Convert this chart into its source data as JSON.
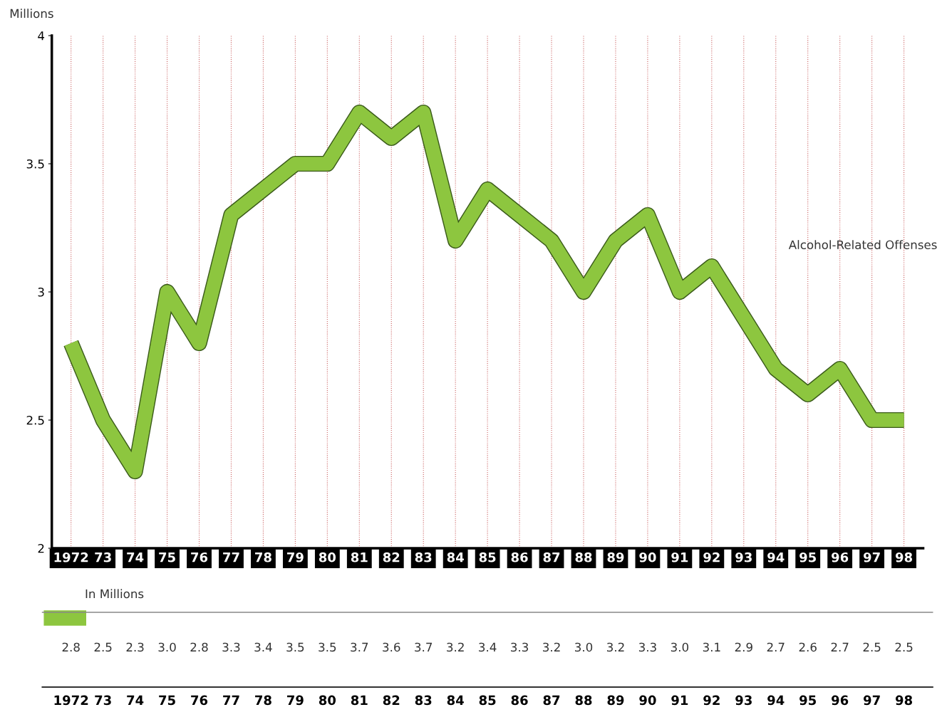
{
  "chart_data": {
    "type": "line",
    "ylabel": "Millions",
    "categories": [
      "1972",
      "73",
      "74",
      "75",
      "76",
      "77",
      "78",
      "79",
      "80",
      "81",
      "82",
      "83",
      "84",
      "85",
      "86",
      "87",
      "88",
      "89",
      "90",
      "91",
      "92",
      "93",
      "94",
      "95",
      "96",
      "97",
      "98"
    ],
    "series": [
      {
        "name": "Alcohol-Related Offenses",
        "color": "#8dc63f",
        "values": [
          2.8,
          2.5,
          2.3,
          3.0,
          2.8,
          3.3,
          3.4,
          3.5,
          3.5,
          3.7,
          3.6,
          3.7,
          3.2,
          3.4,
          3.3,
          3.2,
          3.0,
          3.2,
          3.3,
          3.0,
          3.1,
          2.9,
          2.7,
          2.6,
          2.7,
          2.5,
          2.5
        ],
        "value_labels": [
          "2.8",
          "2.5",
          "2.3",
          "3.0",
          "2.8",
          "3.3",
          "3.4",
          "3.5",
          "3.5",
          "3.7",
          "3.6",
          "3.7",
          "3.2",
          "3.4",
          "3.3",
          "3.2",
          "3.0",
          "3.2",
          "3.3",
          "3.0",
          "3.1",
          "2.9",
          "2.7",
          "2.6",
          "2.7",
          "2.5",
          "2.5"
        ]
      }
    ],
    "ylim": [
      2,
      4
    ],
    "yticks": [
      2,
      2.5,
      3,
      3.5,
      4
    ],
    "grid": "x",
    "legend": false,
    "annotations": [
      "In Millions"
    ]
  }
}
